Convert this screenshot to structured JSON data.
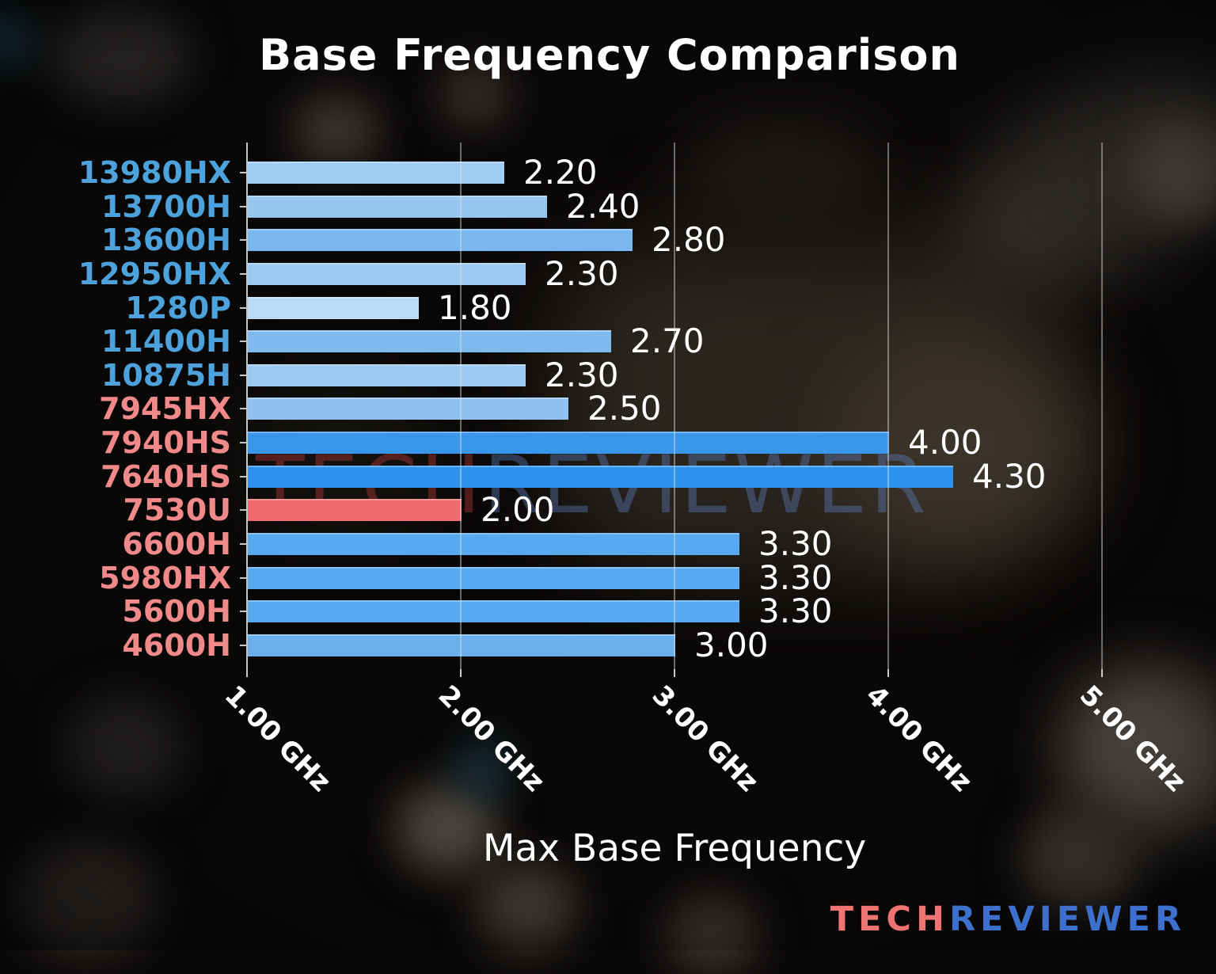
{
  "title": "Base Frequency Comparison",
  "chart_data": {
    "type": "bar",
    "orientation": "horizontal",
    "title": "Base Frequency Comparison",
    "xlabel": "Max Base Frequency",
    "xlim": [
      1.0,
      5.3
    ],
    "grid": "vertical",
    "x_ticks": [
      1.0,
      2.0,
      3.0,
      4.0,
      5.0
    ],
    "x_tick_labels": [
      "1.00 GHz",
      "2.00 GHz",
      "3.00 GHz",
      "4.00 GHz",
      "5.00 GHz"
    ],
    "categories": [
      "13980HX",
      "13700H",
      "13600H",
      "12950HX",
      "1280P",
      "11400H",
      "10875H",
      "7945HX",
      "7940HS",
      "7640HS",
      "7530U",
      "6600H",
      "5980HX",
      "5600H",
      "4600H"
    ],
    "values": [
      2.2,
      2.4,
      2.8,
      2.3,
      1.8,
      2.7,
      2.3,
      2.5,
      4.0,
      4.3,
      2.0,
      3.3,
      3.3,
      3.3,
      3.0
    ],
    "value_labels": [
      "2.20",
      "2.40",
      "2.80",
      "2.30",
      "1.80",
      "2.70",
      "2.30",
      "2.50",
      "4.00",
      "4.30",
      "2.00",
      "3.30",
      "3.30",
      "3.30",
      "3.00"
    ],
    "bar_colors": [
      "#9fccf2",
      "#96c7f1",
      "#79b7ee",
      "#9bc9f1",
      "#b9dbf6",
      "#7fbaee",
      "#9bc9f1",
      "#8fc2f0",
      "#3897ea",
      "#2d92ec",
      "#ef6a6a",
      "#57aaf0",
      "#57aaf0",
      "#57aaf0",
      "#6ab0ed"
    ],
    "label_groups": [
      "intel",
      "intel",
      "intel",
      "intel",
      "intel",
      "intel",
      "intel",
      "amd",
      "amd",
      "amd",
      "amd",
      "amd",
      "amd",
      "amd",
      "amd"
    ]
  },
  "colors": {
    "intel_label": "#4da2dc",
    "amd_label": "#f08a8a",
    "highlight_bar": "#ef6a6a",
    "value_text": "#ffffff",
    "logo_tech": "#ee7373",
    "logo_reviewer": "#3c70cc"
  },
  "watermark": {
    "part1": "TECH",
    "part2": "REVIEWER"
  },
  "logo": {
    "part1": "TECH",
    "part2": "REVIEWER"
  }
}
